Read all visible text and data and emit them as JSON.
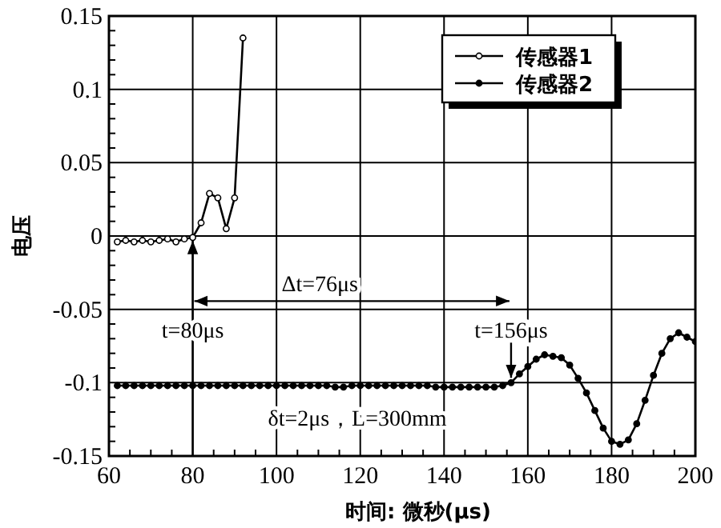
{
  "chart_data": {
    "type": "line",
    "xlabel": "时间: 微秒(μs)",
    "ylabel": "电压",
    "xlim": [
      60,
      200
    ],
    "xticks": [
      60,
      80,
      100,
      120,
      140,
      160,
      180,
      200
    ],
    "ylim": [
      -0.15,
      0.15
    ],
    "yticks": [
      -0.15,
      -0.1,
      -0.05,
      0,
      0.05,
      0.1,
      0.15
    ],
    "grid": true,
    "legend": "top right",
    "marker": "circle",
    "line_style": "solid",
    "series": [
      {
        "name": "传感器1",
        "color": "#000000",
        "x": [
          62,
          64,
          66,
          68,
          70,
          72,
          74,
          76,
          78,
          80,
          82,
          84,
          86,
          88,
          90,
          92
        ],
        "values": [
          -0.004,
          -0.003,
          -0.004,
          -0.003,
          -0.004,
          -0.003,
          -0.002,
          -0.004,
          -0.002,
          -0.001,
          0.009,
          0.029,
          0.026,
          0.005,
          0.026,
          0.135
        ]
      },
      {
        "name": "传感器2",
        "color": "#000000",
        "x": [
          62,
          64,
          66,
          68,
          70,
          72,
          74,
          76,
          78,
          80,
          82,
          84,
          86,
          88,
          90,
          92,
          94,
          96,
          98,
          100,
          102,
          104,
          106,
          108,
          110,
          112,
          114,
          116,
          118,
          120,
          122,
          124,
          126,
          128,
          130,
          132,
          134,
          136,
          138,
          140,
          142,
          144,
          146,
          148,
          150,
          152,
          154,
          156,
          158,
          160,
          162,
          164,
          166,
          168,
          170,
          172,
          174,
          176,
          178,
          180,
          182,
          184,
          186,
          188,
          190,
          192,
          194,
          196,
          198,
          200
        ],
        "values": [
          -0.102,
          -0.102,
          -0.102,
          -0.102,
          -0.102,
          -0.102,
          -0.102,
          -0.102,
          -0.102,
          -0.102,
          -0.102,
          -0.102,
          -0.102,
          -0.102,
          -0.102,
          -0.102,
          -0.102,
          -0.102,
          -0.102,
          -0.102,
          -0.102,
          -0.102,
          -0.102,
          -0.102,
          -0.102,
          -0.102,
          -0.103,
          -0.103,
          -0.102,
          -0.102,
          -0.102,
          -0.102,
          -0.102,
          -0.102,
          -0.102,
          -0.102,
          -0.102,
          -0.102,
          -0.103,
          -0.103,
          -0.103,
          -0.103,
          -0.103,
          -0.103,
          -0.103,
          -0.103,
          -0.102,
          -0.1,
          -0.094,
          -0.089,
          -0.084,
          -0.081,
          -0.082,
          -0.083,
          -0.088,
          -0.097,
          -0.107,
          -0.119,
          -0.131,
          -0.14,
          -0.142,
          -0.139,
          -0.128,
          -0.112,
          -0.095,
          -0.08,
          -0.07,
          -0.066,
          -0.069,
          -0.072
        ]
      }
    ],
    "ref_lines": [
      {
        "axis": "x",
        "value": 80,
        "label": "t=80μs"
      },
      {
        "axis": "x",
        "value": 156,
        "label": "t=156μs"
      }
    ],
    "annotations": [
      "Δt=76μs",
      "δt=2μs，L=300mm"
    ]
  }
}
